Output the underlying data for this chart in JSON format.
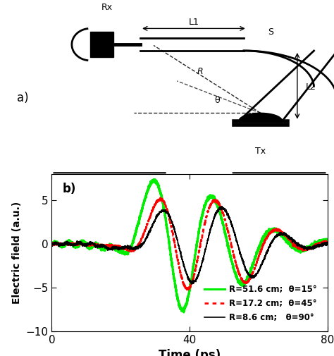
{
  "xlabel": "Time (ps)",
  "ylabel": "Electric field (a.u.)",
  "xlim": [
    0,
    80
  ],
  "ylim": [
    -10,
    8
  ],
  "yticks": [
    -10,
    -5,
    0,
    5
  ],
  "xticks": [
    0,
    40,
    80
  ],
  "legend": [
    {
      "label": "R=51.6 cm;  θ=15°",
      "color": "#00ee00",
      "linestyle": "solid",
      "linewidth": 2.2
    },
    {
      "label": "R=17.2 cm;  θ=45°",
      "color": "red",
      "linestyle": "dotted",
      "linewidth": 2.0
    },
    {
      "label": "R=8.6 cm;   θ=90°",
      "color": "black",
      "linestyle": "solid",
      "linewidth": 1.2
    }
  ],
  "label_a": "a)",
  "label_b": "b)",
  "fig_width": 4.74,
  "fig_height": 5.05,
  "dpi": 100
}
